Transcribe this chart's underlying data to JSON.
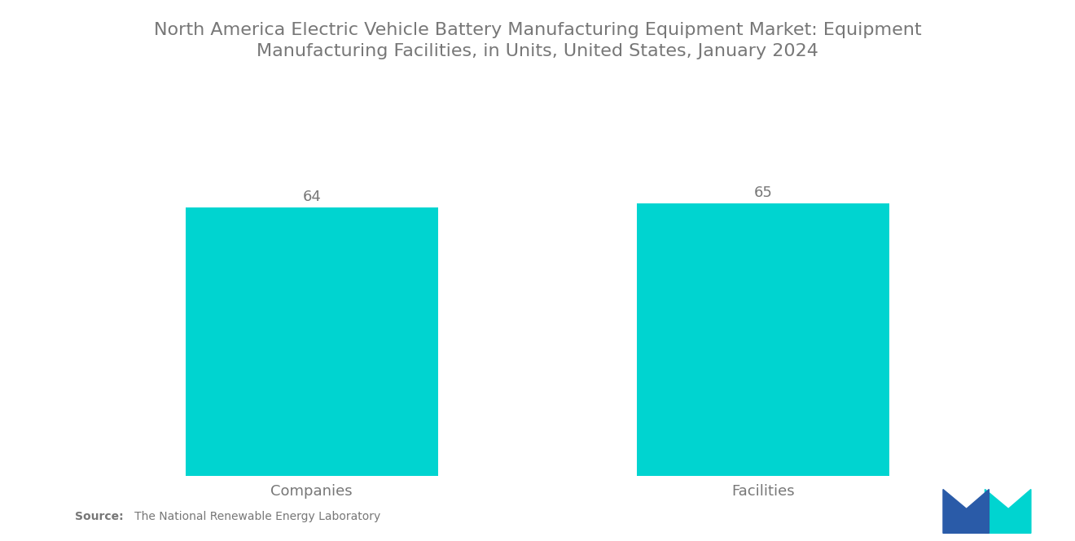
{
  "title": "North America Electric Vehicle Battery Manufacturing Equipment Market: Equipment\nManufacturing Facilities, in Units, United States, January 2024",
  "categories": [
    "Companies",
    "Facilities"
  ],
  "values": [
    64,
    65
  ],
  "bar_color": "#00D4D0",
  "bar_width": 0.28,
  "title_fontsize": 16,
  "label_fontsize": 13,
  "value_fontsize": 13,
  "source_bold": "Source:",
  "source_rest": "   The National Renewable Energy Laboratory",
  "background_color": "#ffffff",
  "text_color": "#777777",
  "ylim": [
    0,
    80
  ],
  "logo_blue": "#2A5BA8",
  "logo_teal": "#00D4D0"
}
